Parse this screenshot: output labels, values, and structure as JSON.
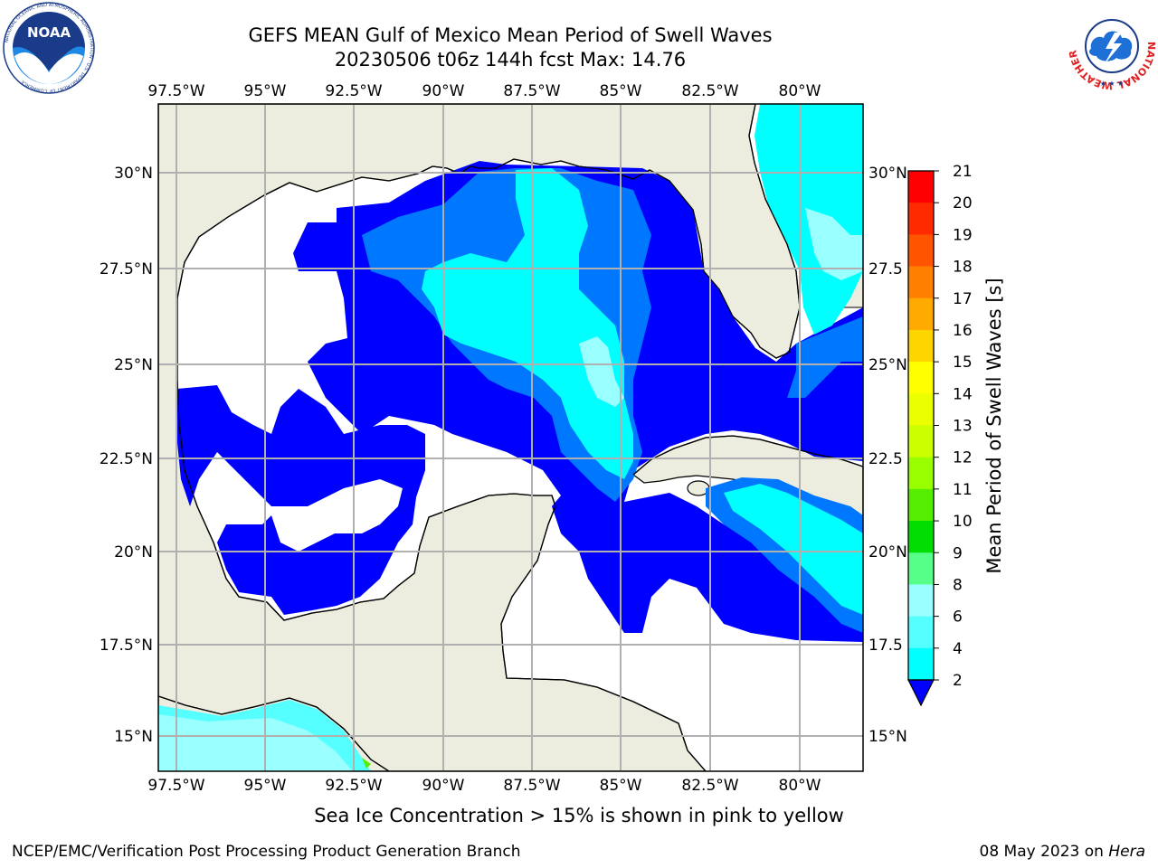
{
  "header": {
    "title_line1": "GEFS MEAN Gulf of Mexico Mean Period of Swell Waves",
    "title_line2": "20230506 t06z 144h fcst   Max: 14.76"
  },
  "logos": {
    "noaa_text": "NOAA",
    "noaa_ring_text": "NATIONAL OCEANIC AND ATMOSPHERIC ADMINISTRATION · U.S. DEPARTMENT OF COMMERCE",
    "nws_ring_text": "NATIONAL WEATHER SERVICE"
  },
  "map": {
    "lon_ticks": [
      "97.5°W",
      "95°W",
      "92.5°W",
      "90°W",
      "87.5°W",
      "85°W",
      "82.5°W",
      "80°W"
    ],
    "lat_ticks_left": [
      "30°N",
      "27.5°N",
      "25°N",
      "22.5°N",
      "20°N",
      "17.5°N",
      "15°N"
    ],
    "lat_ticks_right": [
      "30°N",
      "27.5",
      "25°N",
      "22.5",
      "20°N",
      "17.5",
      "15°N"
    ]
  },
  "colorbar": {
    "label": "Mean Period of Swell Waves [s]",
    "ticks": [
      "21",
      "20",
      "19",
      "18",
      "17",
      "16",
      "15",
      "14",
      "13",
      "12",
      "11",
      "10",
      "9",
      "8",
      "6",
      "4",
      "2"
    ],
    "colors": [
      "#ff0000",
      "#ff2a00",
      "#ff5500",
      "#ff8000",
      "#ffaa00",
      "#ffd500",
      "#ffff00",
      "#eaff00",
      "#ccff00",
      "#99ff00",
      "#55ee00",
      "#00dd00",
      "#55ff88",
      "#99ffff",
      "#55ffff",
      "#00ffff",
      "#00bbff",
      "#0077ff",
      "#0000ff"
    ]
  },
  "footer": {
    "note": "Sea Ice Concentration > 15% is shown in pink to yellow",
    "left": "NCEP/EMC/Verification Post Processing Product Generation Branch",
    "right_date": "08 May 2023 on ",
    "right_host": "Hera"
  }
}
